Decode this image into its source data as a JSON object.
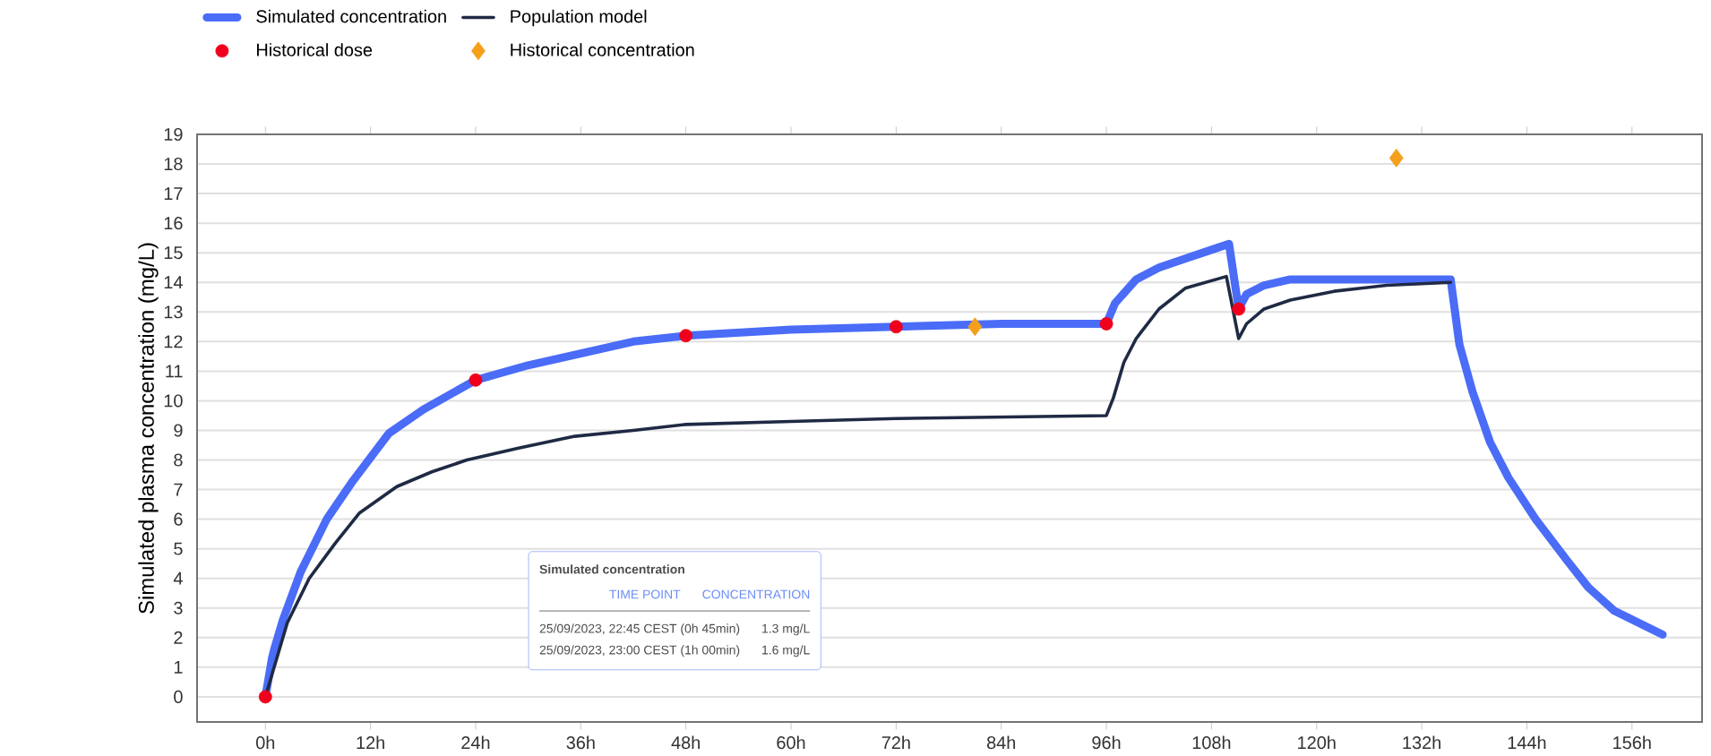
{
  "chart_data": {
    "type": "line",
    "ylabel": "Simulated plasma concentration (mg/L)",
    "xlim": [
      -7.8,
      164
    ],
    "ylim": [
      -0.85,
      19
    ],
    "xticks": [
      {
        "value": 0,
        "label": "0h"
      },
      {
        "value": 12,
        "label": "12h"
      },
      {
        "value": 24,
        "label": "24h"
      },
      {
        "value": 36,
        "label": "36h"
      },
      {
        "value": 48,
        "label": "48h"
      },
      {
        "value": 60,
        "label": "60h"
      },
      {
        "value": 72,
        "label": "72h"
      },
      {
        "value": 84,
        "label": "84h"
      },
      {
        "value": 96,
        "label": "96h"
      },
      {
        "value": 108,
        "label": "108h"
      },
      {
        "value": 120,
        "label": "120h"
      },
      {
        "value": 132,
        "label": "132h"
      },
      {
        "value": 144,
        "label": "144h"
      },
      {
        "value": 156,
        "label": "156h"
      }
    ],
    "yticks": [
      0,
      1,
      2,
      3,
      4,
      5,
      6,
      7,
      8,
      9,
      10,
      11,
      12,
      13,
      14,
      15,
      16,
      17,
      18,
      19
    ],
    "grid": "y",
    "legend": "top",
    "series": [
      {
        "name": "Simulated concentration",
        "type": "line",
        "color": "#4a6cf7",
        "x": [
          0,
          0.75,
          1,
          2,
          4,
          7,
          10,
          14.1,
          18,
          21,
          24,
          30,
          36,
          42,
          48,
          60,
          72,
          84,
          96,
          97,
          99.4,
          102,
          105,
          108,
          110,
          111.1,
          112,
          114,
          117,
          122,
          128,
          135.3,
          136.3,
          137.8,
          139.8,
          141.9,
          145,
          148.6,
          151,
          154,
          159.5
        ],
        "values": [
          0,
          1.3,
          1.6,
          2.6,
          4.2,
          6.0,
          7.3,
          8.9,
          9.7,
          10.2,
          10.7,
          11.2,
          11.6,
          12.0,
          12.2,
          12.4,
          12.5,
          12.6,
          12.6,
          13.3,
          14.1,
          14.5,
          14.8,
          15.1,
          15.3,
          13.1,
          13.6,
          13.9,
          14.1,
          14.1,
          14.1,
          14.1,
          11.9,
          10.3,
          8.6,
          7.4,
          6.0,
          4.6,
          3.7,
          2.9,
          2.1
        ]
      },
      {
        "name": "Population model",
        "type": "line",
        "color": "#1f2a44",
        "x": [
          0,
          1,
          2.5,
          5,
          8,
          10.7,
          15,
          19,
          23,
          28.9,
          35.3,
          42,
          48,
          60,
          72,
          96,
          96.8,
          98,
          99.4,
          102,
          105,
          109.7,
          111.1,
          112,
          114,
          117,
          122,
          128,
          135.3
        ],
        "values": [
          0,
          1.0,
          2.5,
          4.0,
          5.2,
          6.2,
          7.1,
          7.6,
          8.0,
          8.4,
          8.8,
          9.0,
          9.2,
          9.3,
          9.4,
          9.5,
          10.1,
          11.3,
          12.1,
          13.1,
          13.8,
          14.2,
          12.1,
          12.6,
          13.1,
          13.4,
          13.7,
          13.9,
          14.0
        ]
      },
      {
        "name": "Historical dose",
        "type": "scatter",
        "marker": "circle",
        "color": "#f0001c",
        "x": [
          0,
          24,
          48,
          72,
          96,
          111.1
        ],
        "values": [
          0,
          10.7,
          12.2,
          12.5,
          12.6,
          13.1
        ]
      },
      {
        "name": "Historical concentration",
        "type": "scatter",
        "marker": "diamond",
        "color": "#f5a01a",
        "x": [
          81,
          129.1
        ],
        "values": [
          12.5,
          18.2
        ]
      }
    ],
    "annotations": [
      "Simulated concentration",
      "TIME POINT",
      "CONCENTRATION",
      "25/09/2023, 22:45 CEST (0h 45min)",
      "1.3 mg/L",
      "25/09/2023, 23:00 CEST (1h 00min)",
      "1.6 mg/L"
    ]
  }
}
